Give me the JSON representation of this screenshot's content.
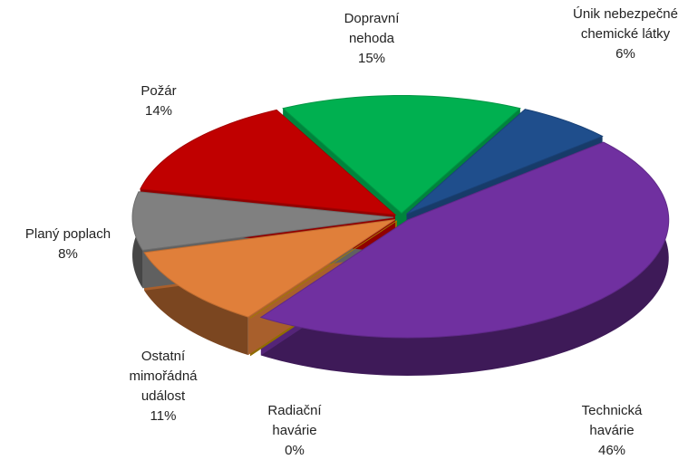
{
  "chart_data": {
    "type": "pie",
    "categories": [
      "Dopravní nehoda",
      "Únik nebezpečné chemické látky",
      "Technická havárie",
      "Radiační havárie",
      "Ostatní mimořádná událost",
      "Planý poplach",
      "Požár"
    ],
    "values": [
      15,
      6,
      46,
      0,
      11,
      8,
      14
    ],
    "value_labels": [
      "15%",
      "6%",
      "46%",
      "0%",
      "11%",
      "8%",
      "14%"
    ],
    "colors": [
      "#00b050",
      "#1f4e8c",
      "#7030a0",
      "#bf9000",
      "#e07f3a",
      "#808080",
      "#c00000"
    ]
  }
}
